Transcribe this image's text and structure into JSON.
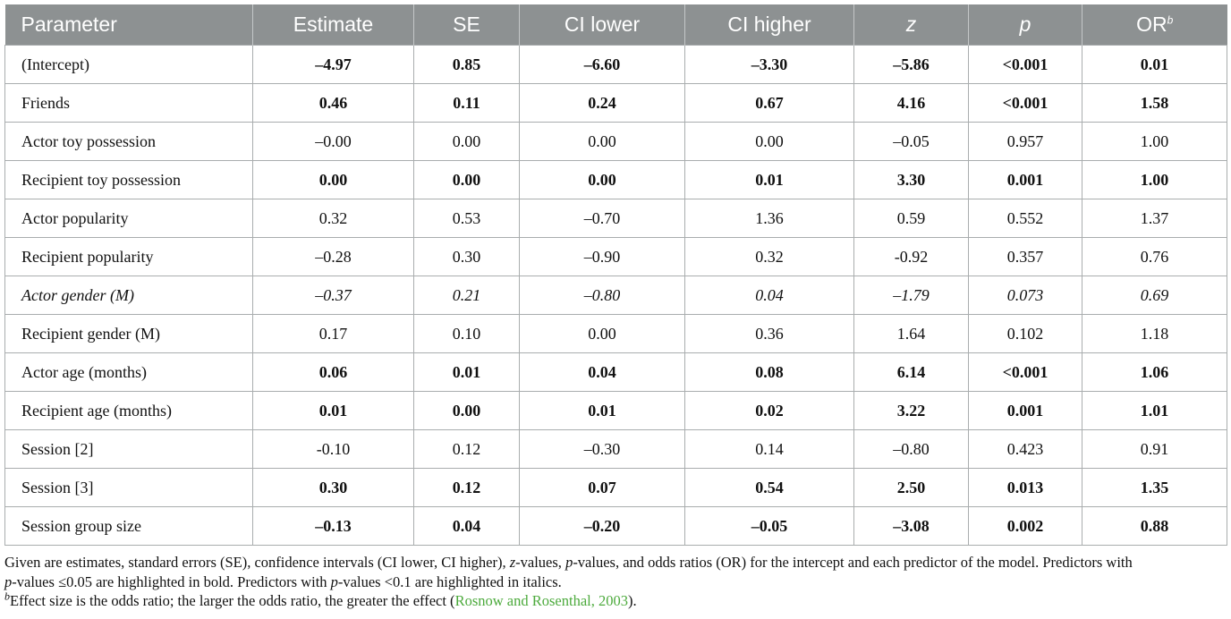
{
  "table": {
    "columns": [
      "Parameter",
      "Estimate",
      "SE",
      "CI lower",
      "CI higher",
      "z",
      "p",
      "OR"
    ],
    "or_superscript": "b",
    "rows": [
      {
        "style": "bold",
        "cells": [
          "(Intercept)",
          "–4.97",
          "0.85",
          "–6.60",
          "–3.30",
          "–5.86",
          "<0.001",
          "0.01"
        ]
      },
      {
        "style": "bold",
        "cells": [
          "Friends",
          "0.46",
          "0.11",
          "0.24",
          "0.67",
          "4.16",
          "<0.001",
          "1.58"
        ]
      },
      {
        "style": "normal",
        "cells": [
          "Actor toy possession",
          "–0.00",
          "0.00",
          "0.00",
          "0.00",
          "–0.05",
          "0.957",
          "1.00"
        ]
      },
      {
        "style": "bold",
        "cells": [
          "Recipient toy possession",
          "0.00",
          "0.00",
          "0.00",
          "0.01",
          "3.30",
          "0.001",
          "1.00"
        ]
      },
      {
        "style": "normal",
        "cells": [
          "Actor popularity",
          "0.32",
          "0.53",
          "–0.70",
          "1.36",
          "0.59",
          "0.552",
          "1.37"
        ]
      },
      {
        "style": "normal",
        "cells": [
          "Recipient popularity",
          "–0.28",
          "0.30",
          "–0.90",
          "0.32",
          "-0.92",
          "0.357",
          "0.76"
        ]
      },
      {
        "style": "italic",
        "cells": [
          "Actor gender (M)",
          "–0.37",
          "0.21",
          "–0.80",
          "0.04",
          "–1.79",
          "0.073",
          "0.69"
        ]
      },
      {
        "style": "normal",
        "cells": [
          "Recipient gender (M)",
          "0.17",
          "0.10",
          "0.00",
          "0.36",
          "1.64",
          "0.102",
          "1.18"
        ]
      },
      {
        "style": "bold",
        "cells": [
          "Actor age (months)",
          "0.06",
          "0.01",
          "0.04",
          "0.08",
          "6.14",
          "<0.001",
          "1.06"
        ]
      },
      {
        "style": "bold",
        "cells": [
          "Recipient age (months)",
          "0.01",
          "0.00",
          "0.01",
          "0.02",
          "3.22",
          "0.001",
          "1.01"
        ]
      },
      {
        "style": "normal",
        "cells": [
          "Session [2]",
          "-0.10",
          "0.12",
          "–0.30",
          "0.14",
          "–0.80",
          "0.423",
          "0.91"
        ]
      },
      {
        "style": "bold",
        "cells": [
          "Session [3]",
          "0.30",
          "0.12",
          "0.07",
          "0.54",
          "2.50",
          "0.013",
          "1.35"
        ]
      },
      {
        "style": "bold",
        "cells": [
          "Session group size",
          "–0.13",
          "0.04",
          "–0.20",
          "–0.05",
          "–3.08",
          "0.002",
          "0.88"
        ]
      }
    ]
  },
  "caption": {
    "l1_a": "Given are estimates, standard errors (SE), confidence intervals (CI lower, CI higher), ",
    "l1_z": "z",
    "l1_b": "-values, ",
    "l1_p": "p",
    "l1_c": "-values, and odds ratios (OR) for the intercept and each predictor of the model. Predictors with",
    "l2_p": "p",
    "l2_a": "-values ≤0.05 are highlighted in bold. Predictors with ",
    "l2_p2": "p",
    "l2_b": "-values <0.1 are highlighted in italics.",
    "l3_sup": "b",
    "l3_a": "Effect size is the odds ratio; the larger the odds ratio, the greater the effect (",
    "l3_cite": "Rosnow and Rosenthal, 2003",
    "l3_b": ")."
  },
  "colors": {
    "header_bg": "#8d9192",
    "header_text": "#ffffff",
    "cell_border": "#a9adae",
    "citation_link": "#4caa3c"
  }
}
